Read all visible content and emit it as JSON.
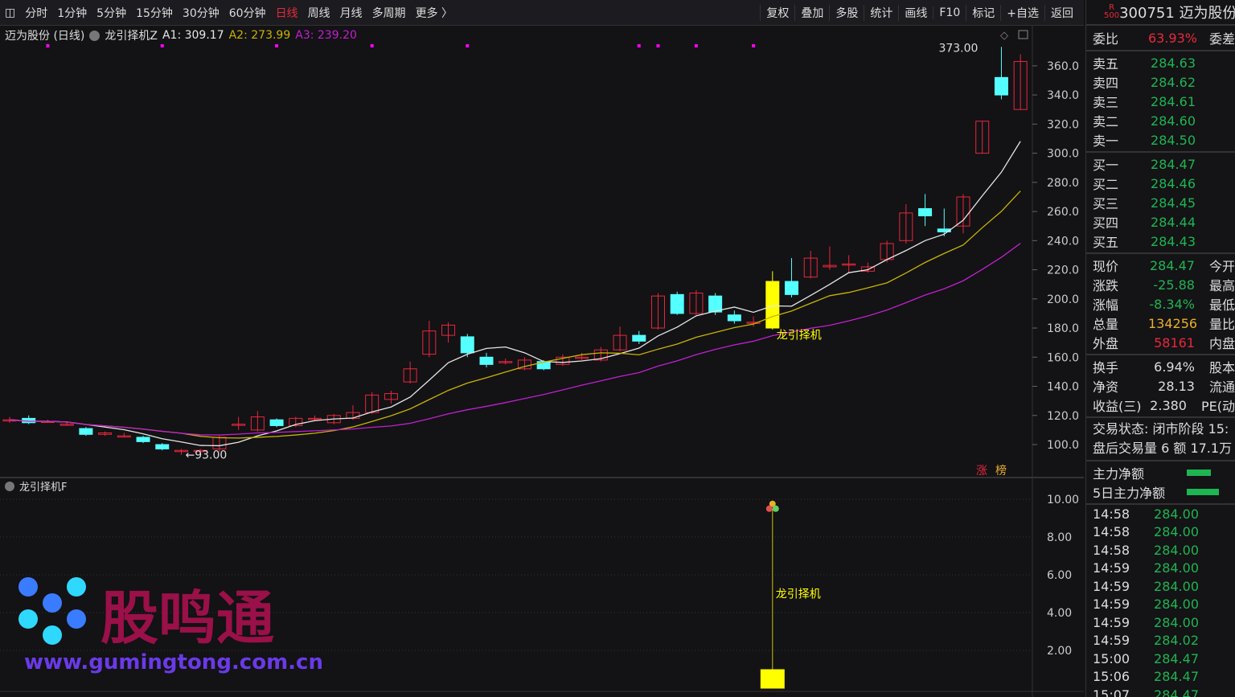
{
  "toolbar": {
    "periods": [
      "分时",
      "1分钟",
      "5分钟",
      "15分钟",
      "30分钟",
      "60分钟",
      "日线",
      "周线",
      "月线",
      "多周期",
      "更多 〉"
    ],
    "active": "日线",
    "right": [
      "复权",
      "叠加",
      "多股",
      "统计",
      "画线",
      "F10",
      "标记",
      "+自选",
      "返回"
    ]
  },
  "legend": {
    "title": "迈为股份 (日线)",
    "indicator": "龙引择机Z",
    "a1": "A1: 309.17",
    "a2": "A2: 273.99",
    "a3": "A3: 239.20"
  },
  "main_chart": {
    "price_ticks": [
      "360.0",
      "340.0",
      "320.0",
      "300.0",
      "280.0",
      "260.0",
      "240.0",
      "220.0",
      "200.0",
      "180.0",
      "160.0",
      "140.0",
      "120.0",
      "100.0"
    ],
    "high_label": "373.00",
    "low_label": "93.00",
    "signal_label": "龙引择机",
    "badges": [
      "涨",
      "榜"
    ],
    "colors": {
      "up": "#e8283c",
      "down": "#54ffff",
      "a1": "#e6e6e6",
      "a2": "#c8b400",
      "a3": "#c020d0",
      "signal": "#ffff00"
    }
  },
  "chart_data": {
    "type": "candlestick",
    "ylim": [
      90,
      375
    ],
    "ohlc": [
      [
        117,
        117,
        119,
        115
      ],
      [
        118,
        115,
        120,
        114
      ],
      [
        116,
        116,
        117,
        115
      ],
      [
        114,
        114,
        115,
        113
      ],
      [
        111,
        107,
        112,
        106
      ],
      [
        107,
        108,
        109,
        106
      ],
      [
        106,
        106,
        108,
        105
      ],
      [
        105,
        102,
        106,
        101
      ],
      [
        100,
        97,
        101,
        96
      ],
      [
        96,
        96,
        97,
        93
      ],
      [
        96,
        96,
        97,
        95
      ],
      [
        97,
        105,
        106,
        95
      ],
      [
        114,
        114,
        119,
        110
      ],
      [
        110,
        119,
        123,
        109
      ],
      [
        117,
        113,
        118,
        112
      ],
      [
        113,
        118,
        119,
        112
      ],
      [
        118,
        118,
        120,
        116
      ],
      [
        115,
        120,
        121,
        114
      ],
      [
        118,
        122,
        127,
        117
      ],
      [
        122,
        134,
        136,
        121
      ],
      [
        131,
        135,
        137,
        128
      ],
      [
        143,
        152,
        157,
        142
      ],
      [
        162,
        178,
        185,
        160
      ],
      [
        175,
        182,
        184,
        170
      ],
      [
        174,
        163,
        176,
        160
      ],
      [
        160,
        155,
        163,
        153
      ],
      [
        157,
        157,
        159,
        155
      ],
      [
        152,
        158,
        160,
        151
      ],
      [
        157,
        152,
        158,
        151
      ],
      [
        155,
        160,
        162,
        154
      ],
      [
        160,
        160,
        163,
        158
      ],
      [
        158,
        165,
        167,
        157
      ],
      [
        165,
        175,
        181,
        164
      ],
      [
        175,
        171,
        178,
        169
      ],
      [
        180,
        202,
        204,
        179
      ],
      [
        203,
        190,
        205,
        189
      ],
      [
        190,
        204,
        206,
        189
      ],
      [
        202,
        191,
        204,
        189
      ],
      [
        189,
        185,
        192,
        183
      ],
      [
        184,
        184,
        188,
        181
      ],
      [
        180,
        212,
        219,
        179
      ],
      [
        212,
        203,
        228,
        201
      ],
      [
        215,
        228,
        233,
        214
      ],
      [
        222,
        223,
        236,
        220
      ],
      [
        224,
        224,
        230,
        218
      ],
      [
        219,
        222,
        225,
        218
      ],
      [
        227,
        238,
        240,
        225
      ],
      [
        240,
        259,
        265,
        238
      ],
      [
        262,
        257,
        272,
        250
      ],
      [
        248,
        246,
        262,
        243
      ],
      [
        250,
        270,
        272,
        245
      ],
      [
        300,
        322,
        322,
        300
      ],
      [
        352,
        340,
        373,
        337
      ],
      [
        330,
        363,
        368,
        330
      ]
    ],
    "signal_index": 40,
    "top_marker_indices": [
      2,
      8,
      14,
      19,
      24,
      33,
      34,
      36,
      39
    ]
  },
  "sub_chart": {
    "title": "龙引择机F",
    "ticks": [
      "10.00",
      "8.00",
      "6.00",
      "4.00",
      "2.00"
    ],
    "signal_label": "龙引择机",
    "signal_value": 9.5
  },
  "watermark": {
    "name": "股鸣通",
    "url": "www.gumingtong.com.cn"
  },
  "right_panel": {
    "code_badge_top": "R",
    "code_badge_bottom": "500",
    "title": "300751 迈为股份",
    "weibi": {
      "label": "委比",
      "value": "63.93%",
      "extra": "委差"
    },
    "sell": [
      {
        "label": "卖五",
        "price": "284.63"
      },
      {
        "label": "卖四",
        "price": "284.62"
      },
      {
        "label": "卖三",
        "price": "284.61"
      },
      {
        "label": "卖二",
        "price": "284.60"
      },
      {
        "label": "卖一",
        "price": "284.50"
      }
    ],
    "buy": [
      {
        "label": "买一",
        "price": "284.47"
      },
      {
        "label": "买二",
        "price": "284.46"
      },
      {
        "label": "买三",
        "price": "284.45"
      },
      {
        "label": "买四",
        "price": "284.44"
      },
      {
        "label": "买五",
        "price": "284.43"
      }
    ],
    "quote1": [
      {
        "label": "现价",
        "value": "284.47",
        "cls": "g",
        "x": "今开"
      },
      {
        "label": "涨跌",
        "value": "-25.88",
        "cls": "g",
        "x": "最高"
      },
      {
        "label": "涨幅",
        "value": "-8.34%",
        "cls": "g",
        "x": "最低"
      },
      {
        "label": "总量",
        "value": "134256",
        "cls": "y",
        "x": "量比"
      },
      {
        "label": "外盘",
        "value": "58161",
        "cls": "r",
        "x": "内盘"
      }
    ],
    "quote2": [
      {
        "label": "换手",
        "value": "6.94%",
        "cls": "w",
        "x": "股本"
      },
      {
        "label": "净资",
        "value": "28.13",
        "cls": "w",
        "x": "流通"
      },
      {
        "label": "收益(三)",
        "value": "2.380",
        "cls": "w",
        "x": "PE(动"
      }
    ],
    "status1": "交易状态: 闭市阶段 15:",
    "status2": "盘后交易量 6 额 17.1万",
    "flow": [
      {
        "label": "主力净额",
        "bar": 0.3
      },
      {
        "label": "5日主力净额",
        "bar": 0.4
      }
    ],
    "ticks": [
      [
        "14:58",
        "284.00"
      ],
      [
        "14:58",
        "284.00"
      ],
      [
        "14:58",
        "284.00"
      ],
      [
        "14:59",
        "284.00"
      ],
      [
        "14:59",
        "284.00"
      ],
      [
        "14:59",
        "284.00"
      ],
      [
        "14:59",
        "284.00"
      ],
      [
        "14:59",
        "284.02"
      ],
      [
        "15:00",
        "284.47"
      ],
      [
        "15:06",
        "284.47"
      ],
      [
        "15:07",
        "284.47"
      ]
    ]
  }
}
